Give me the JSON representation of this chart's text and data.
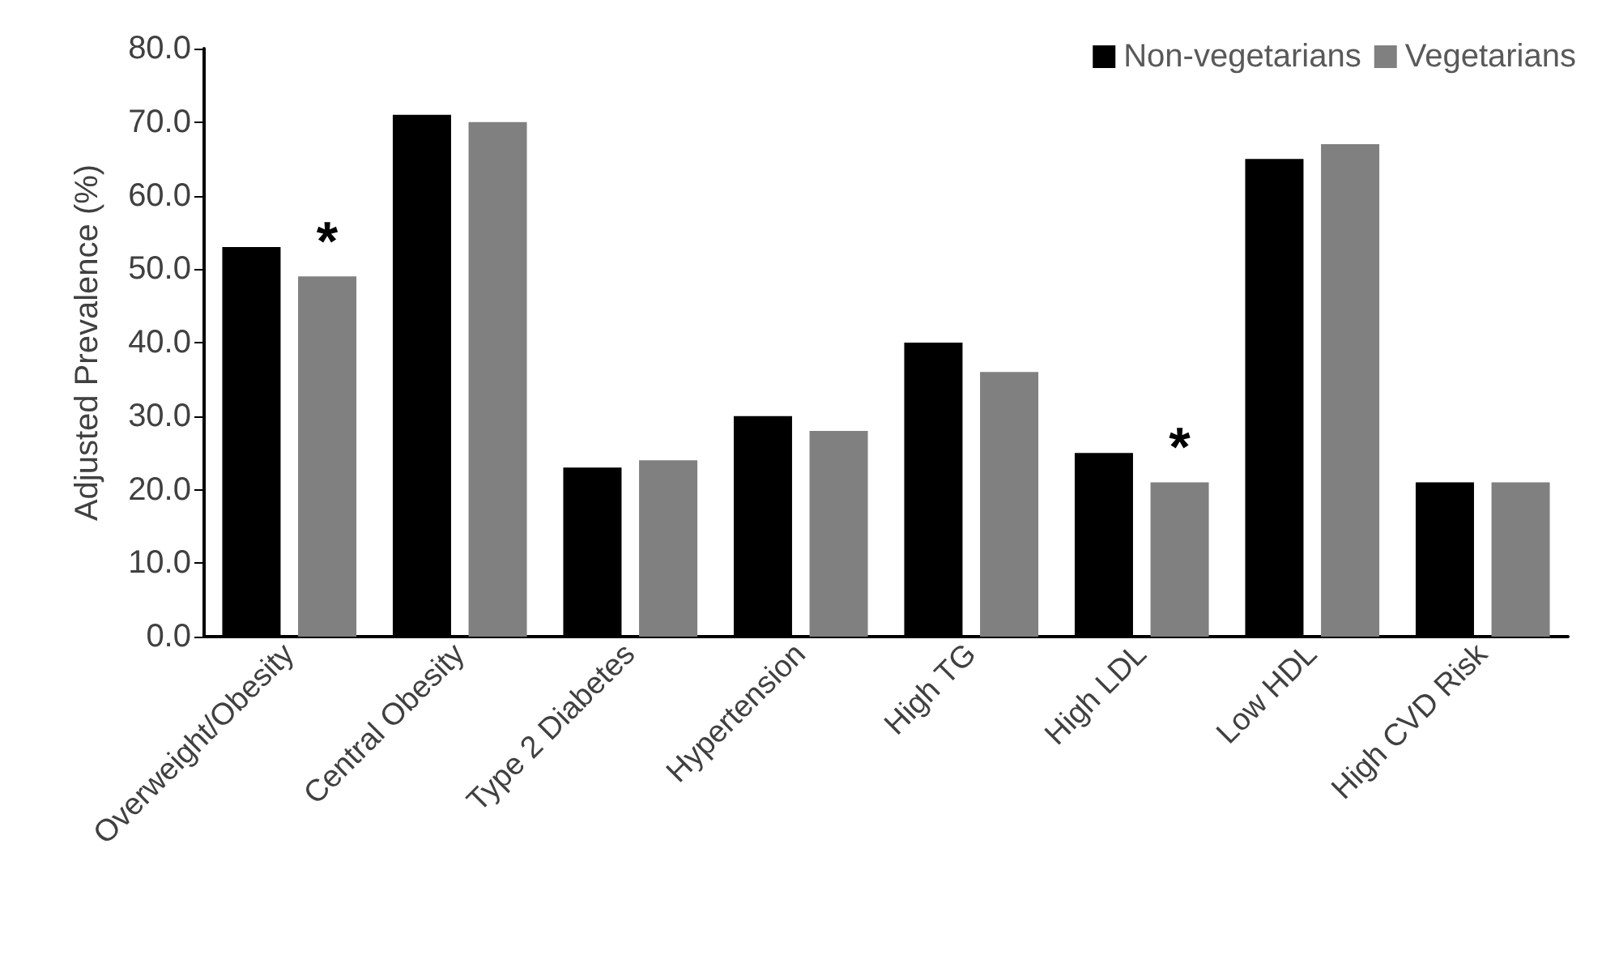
{
  "chart_data": {
    "type": "bar",
    "ylabel": "Adjusted Prevalence (%)",
    "categories": [
      "Overweight/Obesity",
      "Central Obesity",
      "Type 2 Diabetes",
      "Hypertension",
      "High TG",
      "High LDL",
      "Low HDL",
      "High CVD Risk"
    ],
    "series": [
      {
        "name": "Non-vegetarians",
        "color": "#000000",
        "values": [
          53,
          71,
          23,
          30,
          40,
          25,
          65,
          21
        ]
      },
      {
        "name": "Vegetarians",
        "color": "#808080",
        "values": [
          49,
          70,
          24,
          28,
          36,
          21,
          67,
          21
        ]
      }
    ],
    "ylim": [
      0,
      80
    ],
    "yticks": [
      {
        "value": 0,
        "label": "0.0"
      },
      {
        "value": 10,
        "label": "10.0"
      },
      {
        "value": 20,
        "label": "20.0"
      },
      {
        "value": 30,
        "label": "30.0"
      },
      {
        "value": 40,
        "label": "40.0"
      },
      {
        "value": 50,
        "label": "50.0"
      },
      {
        "value": 60,
        "label": "60.0"
      },
      {
        "value": 70,
        "label": "70.0"
      },
      {
        "value": 80,
        "label": "80.0"
      }
    ],
    "annotations": [
      {
        "text": "*",
        "x": "Overweight/Obesity",
        "y": 49
      },
      {
        "text": "*",
        "x": "High LDL",
        "y": 21
      }
    ],
    "grid": false,
    "legend": "top right"
  }
}
